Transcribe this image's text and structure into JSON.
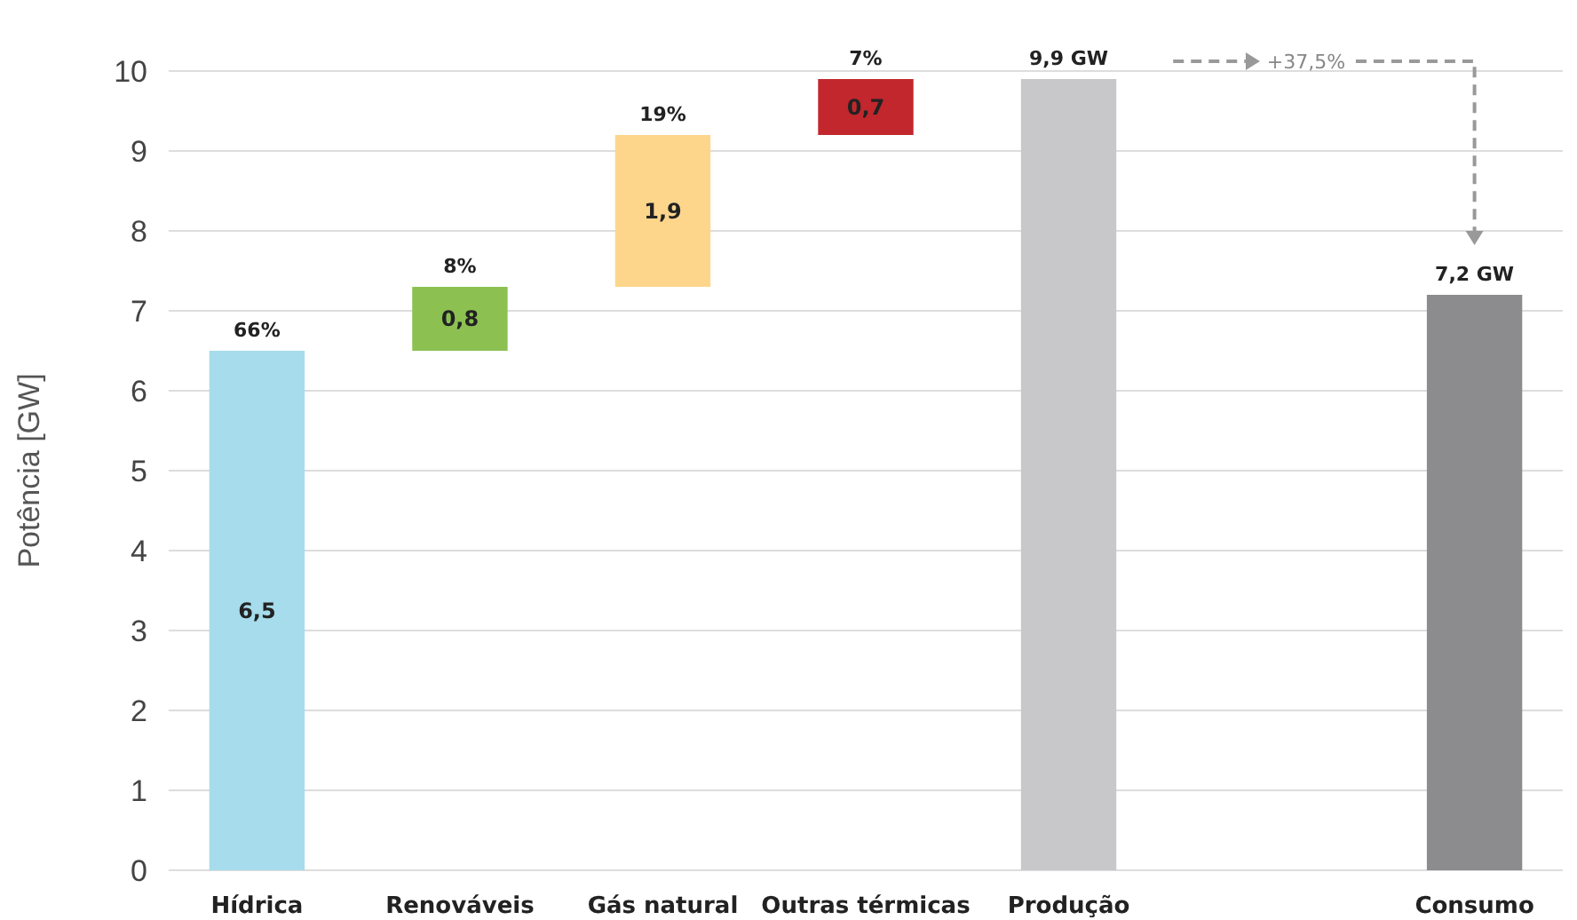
{
  "chart_data": {
    "type": "bar",
    "ylabel": "Potência [GW]",
    "categories": [
      "Hídrica",
      "Renováveis",
      "Gás natural",
      "Outras térmicas",
      "Produção",
      null,
      "Consumo"
    ],
    "values": [
      6.5,
      0.8,
      1.9,
      0.7,
      9.9,
      null,
      7.2
    ],
    "base": [
      0,
      6.5,
      7.3,
      9.2,
      0,
      null,
      0
    ],
    "colors": [
      "#a6dcec",
      "#8cc152",
      "#fdd68c",
      "#c1272d",
      "#c8c8ca",
      null,
      "#8c8c8e"
    ],
    "value_labels": [
      "6,5",
      "0,8",
      "1,9",
      "0,7",
      null,
      null,
      null
    ],
    "annotations": [
      {
        "text": "66%",
        "x": "Hídrica",
        "y": 6.5
      },
      {
        "text": "8%",
        "x": "Renováveis",
        "y": 7.3
      },
      {
        "text": "19%",
        "x": "Gás natural",
        "y": 9.2
      },
      {
        "text": "7%",
        "x": "Outras térmicas",
        "y": 9.9
      },
      {
        "text": "9,9 GW",
        "x": "Produção",
        "y": 9.9
      },
      {
        "text": "7,2 GW",
        "x": "Consumo",
        "y": 7.2
      },
      "+37,5%"
    ],
    "ylim": [
      0,
      10
    ],
    "yticks": [
      0,
      1,
      2,
      3,
      4,
      5,
      6,
      7,
      8,
      9,
      10
    ],
    "grid": "y"
  }
}
